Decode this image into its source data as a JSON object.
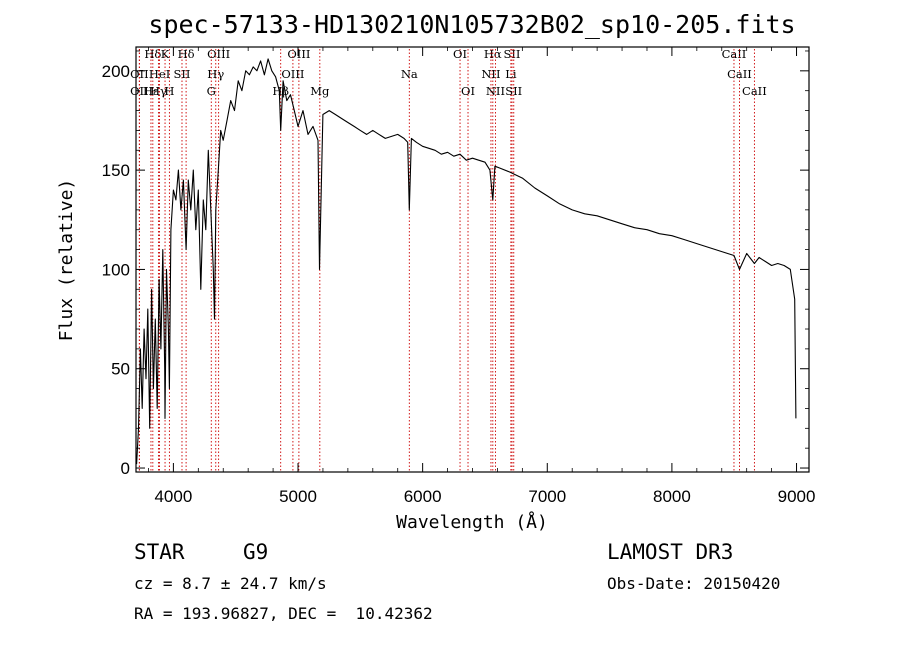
{
  "chart_data": {
    "type": "line",
    "title": "spec-57133-HD130210N105732B02_sp10-205.fits",
    "xlabel": "Wavelength (Å)",
    "ylabel": "Flux (relative)",
    "xlim": [
      3700,
      9100
    ],
    "ylim": [
      -2,
      212
    ],
    "xticks": [
      4000,
      5000,
      6000,
      7000,
      8000,
      9000
    ],
    "yticks": [
      0,
      50,
      100,
      150,
      200
    ],
    "grid": false,
    "line_color": "#000000",
    "marker_color": "#cc0000",
    "series": [
      {
        "name": "flux",
        "x": [
          3705,
          3720,
          3735,
          3750,
          3765,
          3780,
          3795,
          3810,
          3825,
          3840,
          3855,
          3870,
          3885,
          3900,
          3915,
          3930,
          3933,
          3945,
          3960,
          3968,
          3980,
          4000,
          4020,
          4040,
          4060,
          4080,
          4102,
          4120,
          4140,
          4160,
          4180,
          4200,
          4220,
          4240,
          4260,
          4280,
          4300,
          4320,
          4330,
          4340,
          4360,
          4380,
          4400,
          4430,
          4460,
          4490,
          4520,
          4550,
          4580,
          4610,
          4640,
          4670,
          4700,
          4730,
          4760,
          4790,
          4820,
          4850,
          4861,
          4880,
          4910,
          4940,
          4970,
          5000,
          5040,
          5080,
          5120,
          5160,
          5172,
          5200,
          5250,
          5300,
          5350,
          5400,
          5450,
          5500,
          5550,
          5600,
          5650,
          5700,
          5750,
          5800,
          5850,
          5880,
          5893,
          5910,
          5950,
          6000,
          6050,
          6100,
          6150,
          6200,
          6250,
          6300,
          6350,
          6400,
          6450,
          6500,
          6540,
          6563,
          6580,
          6620,
          6700,
          6800,
          6900,
          7000,
          7100,
          7200,
          7300,
          7400,
          7500,
          7600,
          7700,
          7800,
          7900,
          8000,
          8100,
          8200,
          8300,
          8400,
          8498,
          8542,
          8600,
          8662,
          8700,
          8750,
          8800,
          8850,
          8900,
          8950,
          8985,
          8995
        ],
        "values": [
          2,
          20,
          60,
          30,
          70,
          45,
          80,
          20,
          90,
          40,
          75,
          30,
          95,
          60,
          110,
          50,
          25,
          100,
          70,
          40,
          120,
          140,
          135,
          150,
          130,
          145,
          110,
          145,
          130,
          150,
          120,
          140,
          90,
          135,
          120,
          160,
          130,
          100,
          75,
          130,
          150,
          170,
          165,
          175,
          185,
          180,
          195,
          190,
          200,
          198,
          202,
          200,
          205,
          198,
          206,
          200,
          197,
          190,
          170,
          195,
          185,
          188,
          180,
          172,
          180,
          168,
          172,
          165,
          100,
          178,
          180,
          178,
          176,
          174,
          172,
          170,
          168,
          170,
          168,
          166,
          167,
          168,
          166,
          164,
          130,
          166,
          164,
          162,
          161,
          160,
          158,
          159,
          157,
          158,
          155,
          156,
          155,
          154,
          150,
          135,
          152,
          151,
          149,
          146,
          141,
          137,
          133,
          130,
          128,
          127,
          125,
          123,
          121,
          120,
          118,
          117,
          115,
          113,
          111,
          109,
          107,
          100,
          108,
          103,
          106,
          104,
          102,
          103,
          102,
          100,
          85,
          25
        ]
      }
    ],
    "line_markers": [
      {
        "label": "Hδ",
        "x": 3835,
        "row": 1
      },
      {
        "label": "OII",
        "x": 3727,
        "row": 2
      },
      {
        "label": "OII",
        "x": 3727,
        "row": 3
      },
      {
        "label": "Hε",
        "x": 3820,
        "row": 3
      },
      {
        "label": "K",
        "x": 3933,
        "row": 1
      },
      {
        "label": "HeI",
        "x": 3889,
        "row": 2
      },
      {
        "label": "Hγ",
        "x": 3880,
        "row": 3
      },
      {
        "label": "H",
        "x": 3968,
        "row": 3
      },
      {
        "label": "SII",
        "x": 4069,
        "row": 2
      },
      {
        "label": "Hδ",
        "x": 4102,
        "row": 1
      },
      {
        "label": "OIII",
        "x": 4363,
        "row": 1
      },
      {
        "label": "Hγ",
        "x": 4340,
        "row": 2
      },
      {
        "label": "G",
        "x": 4304,
        "row": 3
      },
      {
        "label": "OIII",
        "x": 5007,
        "row": 1
      },
      {
        "label": "OIII",
        "x": 4959,
        "row": 2
      },
      {
        "label": "Hβ",
        "x": 4861,
        "row": 3
      },
      {
        "label": "Mg",
        "x": 5175,
        "row": 3
      },
      {
        "label": "Na",
        "x": 5893,
        "row": 2
      },
      {
        "label": "OI",
        "x": 6300,
        "row": 1
      },
      {
        "label": "OI",
        "x": 6364,
        "row": 3
      },
      {
        "label": "Hα",
        "x": 6563,
        "row": 1
      },
      {
        "label": "SII",
        "x": 6717,
        "row": 1
      },
      {
        "label": "NII",
        "x": 6548,
        "row": 2
      },
      {
        "label": "Li",
        "x": 6708,
        "row": 2
      },
      {
        "label": "NII",
        "x": 6584,
        "row": 3
      },
      {
        "label": "SII",
        "x": 6731,
        "row": 3
      },
      {
        "label": "CaII",
        "x": 8498,
        "row": 1
      },
      {
        "label": "CaII",
        "x": 8542,
        "row": 2
      },
      {
        "label": "CaII",
        "x": 8662,
        "row": 3
      }
    ]
  },
  "info": {
    "class": "STAR",
    "subclass": "G9",
    "survey": "LAMOST DR3",
    "cz": "cz = 8.7 ± 24.7 km/s",
    "obs_date": "Obs-Date: 20150420",
    "coords": "RA = 193.96827, DEC =  10.42362"
  }
}
